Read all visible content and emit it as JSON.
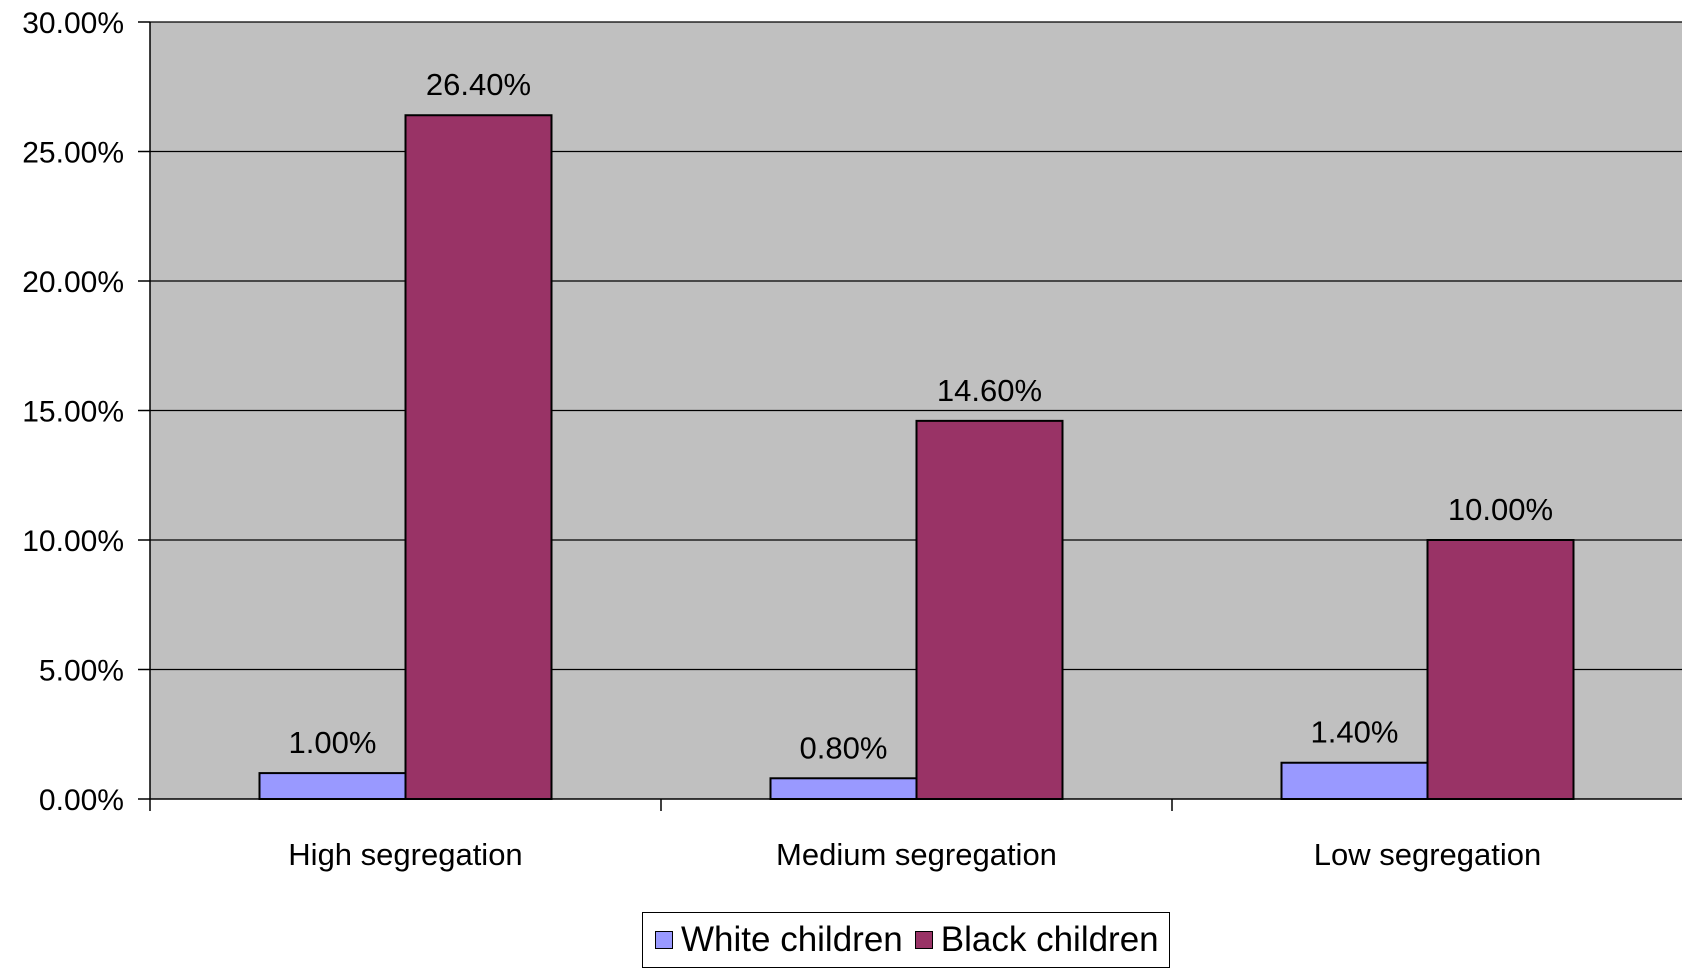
{
  "chart_data": {
    "type": "bar",
    "title": "",
    "xlabel": "",
    "ylabel": "",
    "categories": [
      "High segregation",
      "Medium segregation",
      "Low segregation"
    ],
    "series": [
      {
        "name": "White children",
        "values": [
          1.0,
          0.8,
          1.4
        ],
        "labels": [
          "1.00%",
          "0.80%",
          "1.40%"
        ],
        "color": "#9999ff"
      },
      {
        "name": "Black children",
        "values": [
          26.4,
          14.6,
          10.0
        ],
        "labels": [
          "26.40%",
          "14.60%",
          "10.00%"
        ],
        "color": "#993366"
      }
    ],
    "ylim": [
      0,
      30
    ],
    "yticks": [
      0,
      5,
      10,
      15,
      20,
      25,
      30
    ],
    "ytick_labels": [
      "0.00%",
      "5.00%",
      "10.00%",
      "15.00%",
      "20.00%",
      "25.00%",
      "30.00%"
    ],
    "grid": true,
    "plot_background": "#c0c0c0",
    "legend_position": "bottom"
  }
}
